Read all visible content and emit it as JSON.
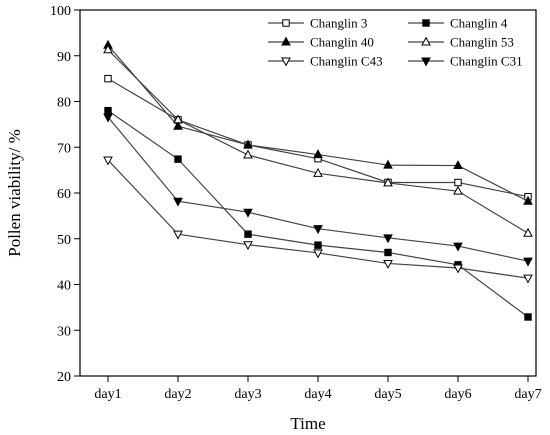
{
  "chart_data": {
    "type": "line",
    "title": "",
    "xlabel": "Time",
    "ylabel": "Pollen viability/ %",
    "categories": [
      "day1",
      "day2",
      "day3",
      "day4",
      "day5",
      "day6",
      "day7"
    ],
    "ylim": [
      20,
      100
    ],
    "yticks": [
      20,
      30,
      40,
      50,
      60,
      70,
      80,
      90,
      100
    ],
    "grid": false,
    "legend_position": "top-right",
    "legend_columns": 2,
    "series": [
      {
        "name": "Changlin 3",
        "marker": "square",
        "filled": false,
        "values": [
          85.0,
          76.0,
          70.5,
          67.5,
          62.3,
          62.3,
          59.2
        ]
      },
      {
        "name": "Changlin 4",
        "marker": "square",
        "filled": true,
        "values": [
          78.0,
          67.4,
          51.0,
          48.6,
          47.0,
          44.3,
          32.9
        ]
      },
      {
        "name": "Changlin 40",
        "marker": "triangle-up",
        "filled": true,
        "values": [
          92.3,
          74.6,
          70.5,
          68.4,
          66.1,
          66.0,
          58.2
        ]
      },
      {
        "name": "Changlin 53",
        "marker": "triangle-up",
        "filled": false,
        "values": [
          91.3,
          76.0,
          68.3,
          64.3,
          62.2,
          60.4,
          51.2
        ]
      },
      {
        "name": "Changlin C43",
        "marker": "triangle-down",
        "filled": false,
        "values": [
          67.2,
          51.0,
          48.7,
          46.9,
          44.6,
          43.6,
          41.4
        ]
      },
      {
        "name": "Changlin C31",
        "marker": "triangle-down",
        "filled": true,
        "values": [
          76.6,
          58.2,
          55.8,
          52.2,
          50.2,
          48.4,
          45.1
        ]
      }
    ],
    "colors": {
      "line": "#444444",
      "marker": "#000000",
      "axis": "#000000"
    }
  }
}
